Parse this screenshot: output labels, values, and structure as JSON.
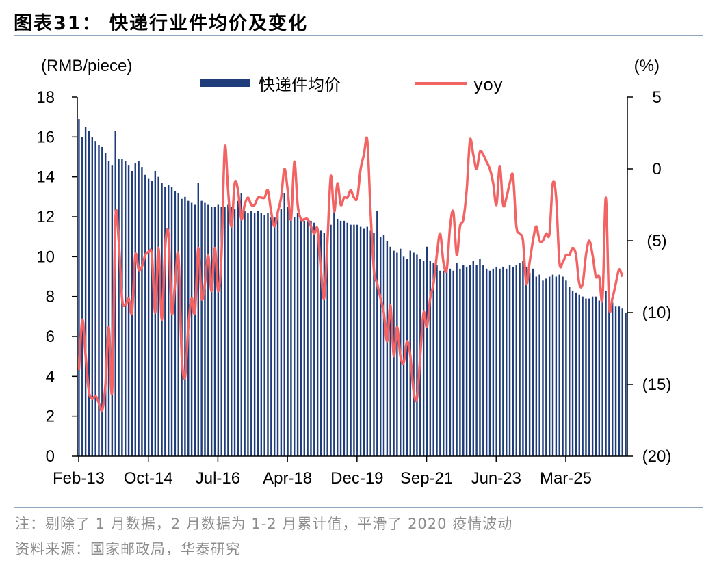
{
  "title": "图表31： 快递行业件均价及变化",
  "notes": {
    "note": "注：剔除了 1 月数据，2 月数据为 1-2 月累计值，平滑了 2020 疫情波动",
    "source": "资料来源：国家邮政局，华泰研究"
  },
  "colors": {
    "bar": "#1f3d7a",
    "line": "#f26363",
    "axis": "#000000",
    "rule": "#8fa5bd"
  },
  "chart_data": {
    "type": "bar",
    "left_unit": "(RMB/piece)",
    "right_unit": "(%)",
    "legend": [
      {
        "label": "快递件均价",
        "kind": "bar"
      },
      {
        "label": "yoy",
        "kind": "line"
      }
    ],
    "x_ticks": [
      "Feb-13",
      "Oct-14",
      "Jul-16",
      "Apr-18",
      "Dec-19",
      "Sep-21",
      "Jun-23",
      "Mar-25"
    ],
    "y_left": {
      "min": 0,
      "max": 18,
      "ticks": [
        "0",
        "2",
        "4",
        "6",
        "8",
        "10",
        "12",
        "14",
        "16",
        "18"
      ]
    },
    "y_right": {
      "min": -20,
      "max": 5,
      "ticks": [
        "(20)",
        "(15)",
        "(10)",
        "(5)",
        "0",
        "5"
      ]
    },
    "series": [
      {
        "name": "快递件均价",
        "kind": "bar",
        "axis": "left",
        "values": [
          16.9,
          16.0,
          16.5,
          16.3,
          16.0,
          15.8,
          15.6,
          15.5,
          15.2,
          14.8,
          14.6,
          16.3,
          14.9,
          14.9,
          14.8,
          14.6,
          14.3,
          14.7,
          14.8,
          14.5,
          14.1,
          13.9,
          13.8,
          14.3,
          14.0,
          13.7,
          13.5,
          13.6,
          13.5,
          13.3,
          13.2,
          12.9,
          13.0,
          12.8,
          12.7,
          12.6,
          13.7,
          12.8,
          12.7,
          12.6,
          12.5,
          12.5,
          12.6,
          12.5,
          12.5,
          12.6,
          12.5,
          12.4,
          12.8,
          13.2,
          12.3,
          12.2,
          12.3,
          12.2,
          12.3,
          12.2,
          12.1,
          12.2,
          12.0,
          12.0,
          12.3,
          12.4,
          13.2,
          12.5,
          12.1,
          12.0,
          12.2,
          11.9,
          11.8,
          11.9,
          11.8,
          11.7,
          11.4,
          11.3,
          11.2,
          11.0,
          11.6,
          12.4,
          11.9,
          11.8,
          11.8,
          11.7,
          11.6,
          11.6,
          11.6,
          11.5,
          11.4,
          11.5,
          11.3,
          11.2,
          12.3,
          11.0,
          11.1,
          10.8,
          10.5,
          10.3,
          10.2,
          10.4,
          10.0,
          9.9,
          10.3,
          10.2,
          10.1,
          9.9,
          9.8,
          10.5,
          9.8,
          9.7,
          9.6,
          9.3,
          9.3,
          9.6,
          9.4,
          9.3,
          9.7,
          9.4,
          9.6,
          9.5,
          9.6,
          9.8,
          9.6,
          9.9,
          9.6,
          9.4,
          9.3,
          9.4,
          9.5,
          9.4,
          9.5,
          9.4,
          9.6,
          9.5,
          9.6,
          9.7,
          9.8,
          9.5,
          9.2,
          9.4,
          9.0,
          9.1,
          8.8,
          8.9,
          9.0,
          9.1,
          9.0,
          9.1,
          9.0,
          8.8,
          8.5,
          8.3,
          8.2,
          8.1,
          8.0,
          7.9,
          7.9,
          8.0,
          8.0,
          7.8,
          7.7,
          8.3,
          7.8,
          7.7,
          7.5,
          7.5,
          7.4,
          7.2
        ]
      },
      {
        "name": "yoy",
        "kind": "line",
        "axis": "right",
        "values": [
          -14.0,
          -10.5,
          -13.0,
          -15.5,
          -16.0,
          -15.8,
          -16.3,
          -16.8,
          -15.0,
          -11.0,
          -15.5,
          -3.5,
          -5.0,
          -9.0,
          -9.5,
          -9.0,
          -10.0,
          -6.0,
          -7.0,
          -6.8,
          -6.0,
          -5.8,
          -6.0,
          -10.0,
          -5.5,
          -10.5,
          -5.5,
          -4.5,
          -10.0,
          -8.0,
          -6.0,
          -13.0,
          -14.5,
          -11.0,
          -9.0,
          -10.0,
          -5.5,
          -9.0,
          -8.0,
          -6.0,
          -8.5,
          -5.5,
          -8.5,
          -6.0,
          1.5,
          -1.5,
          -4.0,
          -1.0,
          -1.5,
          -3.5,
          -2.5,
          -2.0,
          -2.5,
          -2.5,
          -2.0,
          -2.0,
          -2.0,
          -1.5,
          -3.0,
          -4.0,
          -3.0,
          -2.0,
          0.0,
          -1.5,
          -3.5,
          0.5,
          -2.5,
          -3.5,
          -3.5,
          -3.5,
          -4.0,
          -4.5,
          -4.2,
          -7.0,
          -9.0,
          -5.0,
          -0.5,
          -3.0,
          -1.0,
          -2.5,
          -2.0,
          -2.0,
          -1.5,
          -2.0,
          -2.0,
          0.0,
          1.0,
          2.0,
          -3.0,
          -7.0,
          -8.0,
          -9.0,
          -10.0,
          -12.0,
          -9.5,
          -13.0,
          -11.0,
          -13.0,
          -13.5,
          -12.0,
          -13.0,
          -15.5,
          -16.0,
          -13.0,
          -10.0,
          -11.0,
          -9.0,
          -8.0,
          -6.0,
          -4.5,
          -6.5,
          -7.0,
          -4.0,
          -3.0,
          -6.0,
          -4.0,
          -3.5,
          -1.5,
          2.0,
          1.0,
          0.0,
          1.2,
          1.0,
          0.5,
          0.0,
          -1.0,
          -2.5,
          0.2,
          -2.5,
          -2.0,
          -1.0,
          -0.5,
          -4.0,
          -4.5,
          -5.0,
          -8.0,
          -6.5,
          -5.0,
          -4.0,
          -5.0,
          -5.0,
          -4.5,
          -4.5,
          -1.0,
          -2.0,
          -6.5,
          -6.5,
          -6.0,
          -6.0,
          -5.5,
          -6.0,
          -8.0,
          -8.0,
          -6.0,
          -5.0,
          -6.0,
          -7.5,
          -7.5,
          -9.0,
          -2.0,
          -9.5,
          -9.0,
          -8.0,
          -7.0,
          -7.5
        ]
      }
    ]
  }
}
